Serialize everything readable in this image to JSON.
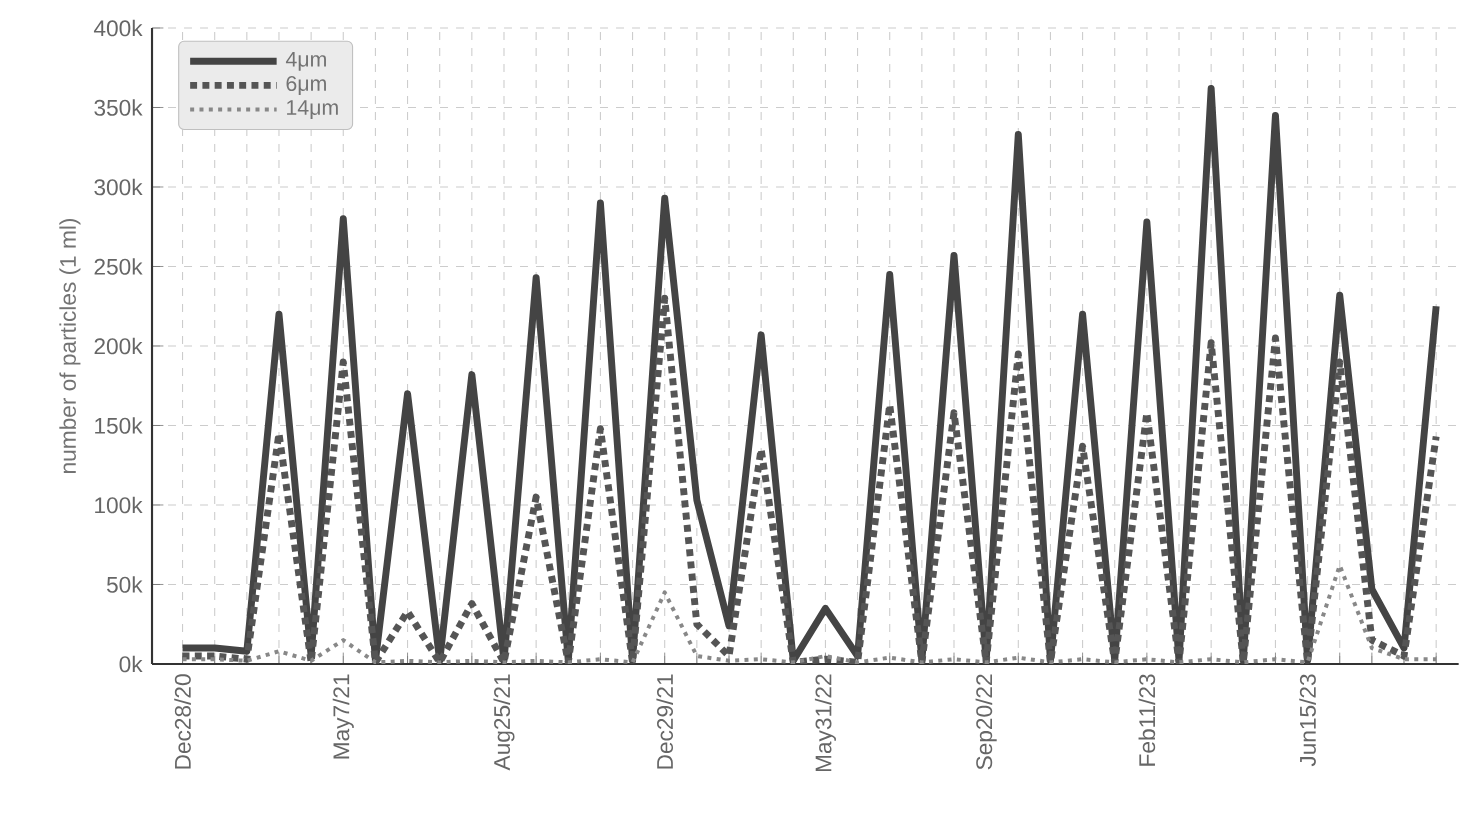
{
  "chart_data": {
    "type": "line",
    "ylabel": "number of particles (1 ml)",
    "categories": [
      "Dec28/20",
      null,
      null,
      null,
      null,
      "May7/21",
      null,
      null,
      null,
      null,
      "Aug25/21",
      null,
      null,
      null,
      null,
      "Dec29/21",
      null,
      null,
      null,
      null,
      "May31/22",
      null,
      null,
      null,
      null,
      "Sep20/22",
      null,
      null,
      null,
      null,
      "Feb11/23",
      null,
      null,
      null,
      null,
      "Jun15/23",
      null,
      null,
      null,
      null
    ],
    "series": [
      {
        "name": "4μm",
        "color": "#444444",
        "line_style": "solid",
        "values": [
          10000,
          10000,
          8000,
          220000,
          5000,
          280000,
          2000,
          170000,
          2000,
          182000,
          2000,
          243000,
          2000,
          290000,
          2000,
          293000,
          103000,
          24000,
          207000,
          2000,
          35000,
          5000,
          245000,
          2000,
          257000,
          2000,
          333000,
          2000,
          220000,
          2000,
          278000,
          2000,
          362000,
          2000,
          345000,
          2000,
          232000,
          47000,
          10000,
          225000
        ]
      },
      {
        "name": "6μm",
        "color": "#555555",
        "line_style": "dotted",
        "values": [
          5000,
          5000,
          3000,
          145000,
          1000,
          190000,
          1000,
          33000,
          1000,
          38000,
          1000,
          105000,
          1000,
          148000,
          1000,
          230000,
          25000,
          5000,
          135000,
          1000,
          3000,
          1000,
          163000,
          1000,
          158000,
          1000,
          195000,
          1000,
          137000,
          1000,
          158000,
          1000,
          202000,
          1000,
          205000,
          1000,
          190000,
          15000,
          5000,
          143000
        ]
      },
      {
        "name": "14μm",
        "color": "#888888",
        "line_style": "dotted",
        "values": [
          3000,
          3000,
          2000,
          8000,
          2000,
          15000,
          1000,
          2000,
          1000,
          2000,
          1000,
          2000,
          1000,
          3000,
          1000,
          45000,
          5000,
          2000,
          3000,
          1000,
          5000,
          1000,
          4000,
          1000,
          3000,
          1000,
          4000,
          1000,
          3000,
          1000,
          3000,
          1000,
          3000,
          1000,
          3000,
          1000,
          62000,
          10000,
          3000,
          3000
        ]
      }
    ],
    "ylim": [
      0,
      400000
    ],
    "yticks": [
      {
        "value": 0,
        "label": "0k"
      },
      {
        "value": 50000,
        "label": "50k"
      },
      {
        "value": 100000,
        "label": "100k"
      },
      {
        "value": 150000,
        "label": "150k"
      },
      {
        "value": 200000,
        "label": "200k"
      },
      {
        "value": 250000,
        "label": "250k"
      },
      {
        "value": 300000,
        "label": "300k"
      },
      {
        "value": 350000,
        "label": "350k"
      },
      {
        "value": 400000,
        "label": "400k"
      }
    ],
    "grid": true,
    "legend": "top left",
    "marker": "none"
  }
}
